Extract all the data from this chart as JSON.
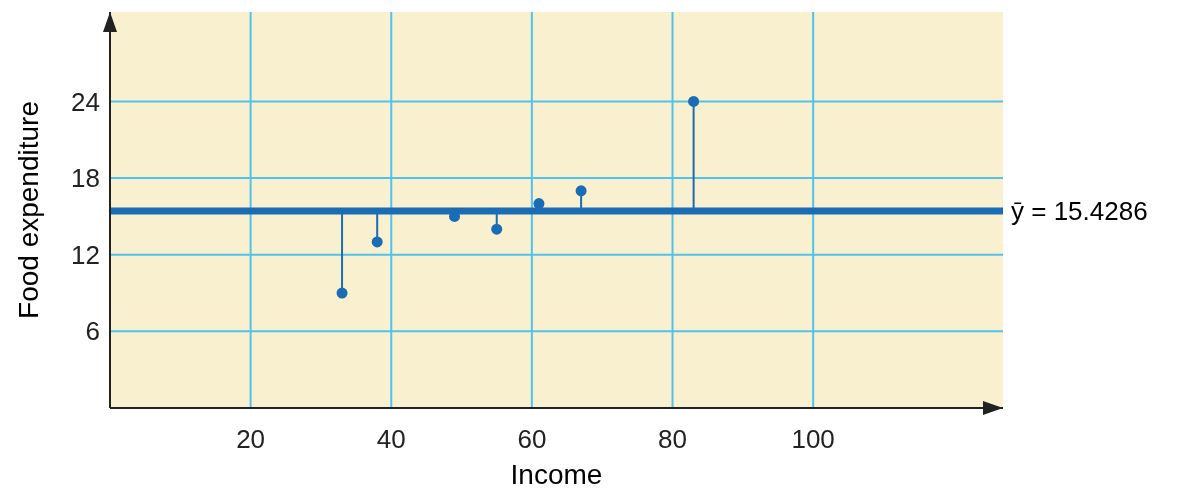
{
  "chart_data": {
    "type": "scatter",
    "xlabel": "Income",
    "ylabel": "Food expenditure",
    "errors": [
      [
        14,
        15.4286
      ],
      [
        15.4286,
        24
      ],
      [
        13,
        15.4286
      ],
      null,
      [
        9,
        15.4286
      ],
      [
        15,
        15.4286
      ],
      [
        15.4286,
        17
      ]
    ],
    "x": [
      55,
      83,
      38,
      61,
      33,
      49,
      67
    ],
    "values": [
      14,
      24,
      13,
      16,
      9,
      15,
      17
    ],
    "color": "#1a6db5",
    "xlim": [
      0,
      127
    ],
    "ylim": [
      0,
      31
    ],
    "xticks": [
      20,
      40,
      60,
      80,
      100
    ],
    "yticks": [
      6,
      12,
      18,
      24
    ],
    "grid": true,
    "marker": "circle",
    "ref_lines": [
      {
        "axis": "y",
        "value": 15.4286,
        "label": "ȳ = 15.4286",
        "color": "#1a6db5"
      }
    ]
  }
}
